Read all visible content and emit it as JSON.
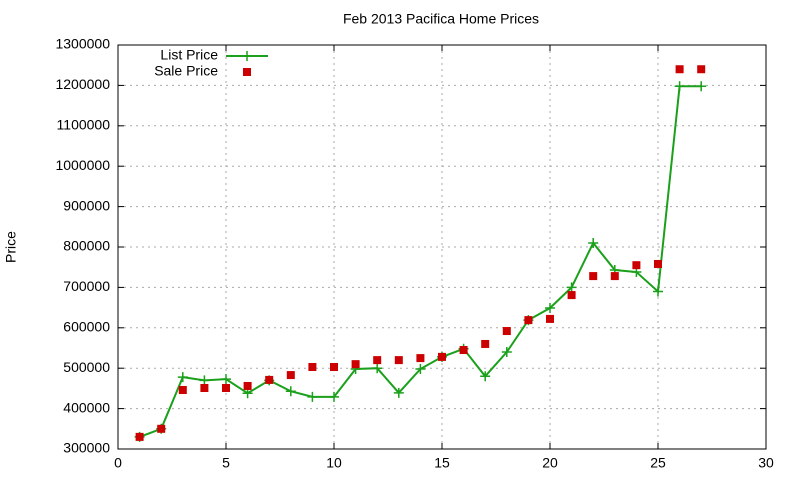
{
  "chart_data": {
    "type": "line",
    "title": "Feb 2013 Pacifica Home Prices",
    "ylabel": "Price",
    "x": [
      1,
      2,
      3,
      4,
      5,
      6,
      7,
      8,
      9,
      10,
      11,
      12,
      13,
      14,
      15,
      16,
      17,
      18,
      19,
      20,
      21,
      22,
      23,
      24,
      25,
      26,
      27
    ],
    "series": [
      {
        "name": "List Price",
        "color": "#1aa01a",
        "style": "linespoints",
        "values": [
          330000,
          350000,
          478000,
          470000,
          473000,
          438000,
          470000,
          443000,
          429000,
          429000,
          498000,
          500000,
          439000,
          498000,
          528000,
          548000,
          480000,
          540000,
          619000,
          649000,
          700000,
          810000,
          743000,
          738000,
          690000,
          1198000,
          1198000
        ]
      },
      {
        "name": "Sale Price",
        "color": "#cc0000",
        "style": "points",
        "values": [
          330000,
          350000,
          446000,
          451000,
          451000,
          456000,
          471000,
          483000,
          503000,
          503000,
          510000,
          520000,
          520000,
          525000,
          528000,
          545000,
          560000,
          592000,
          619000,
          622000,
          681000,
          728000,
          728000,
          755000,
          758000,
          1240000,
          1240000
        ]
      }
    ],
    "xlim": [
      0,
      30
    ],
    "xticks": [
      0,
      5,
      10,
      15,
      20,
      25,
      30
    ],
    "ylim": [
      300000,
      1300000
    ],
    "yticks": [
      300000,
      400000,
      500000,
      600000,
      700000,
      800000,
      900000,
      1000000,
      1100000,
      1200000,
      1300000
    ],
    "grid": true,
    "legend": "top-left"
  }
}
